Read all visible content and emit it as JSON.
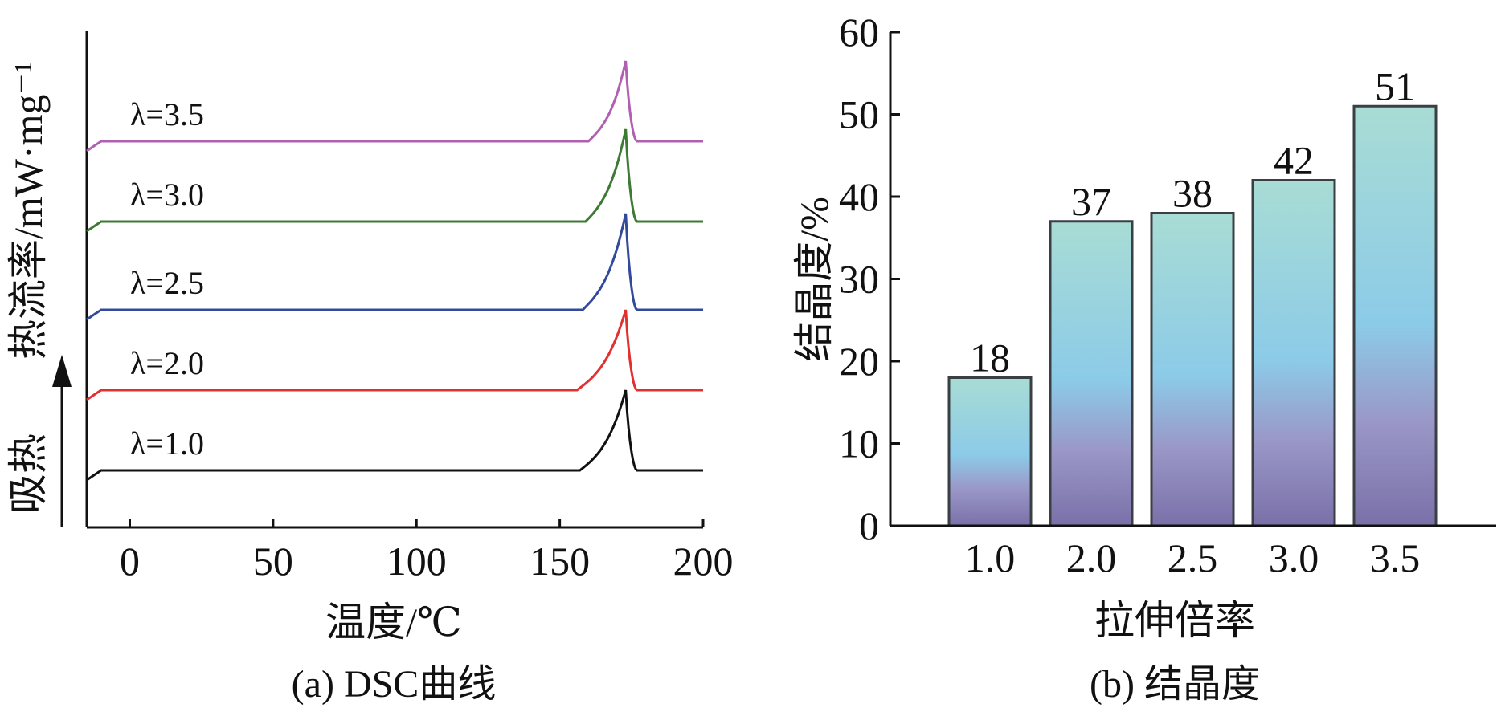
{
  "chart_data": [
    {
      "type": "line",
      "caption": "(a) DSC曲线",
      "xlabel": "温度/℃",
      "ylabel": "热流率/mW·mg⁻¹",
      "endotherm_label": "吸热",
      "xlim": [
        -15,
        200
      ],
      "x_ticks": [
        "0",
        "50",
        "100",
        "150",
        "200"
      ],
      "x_tick_values": [
        0,
        50,
        100,
        150,
        200
      ],
      "peak_temperature": 173,
      "series": [
        {
          "name": "λ=1.0",
          "color": "#111111",
          "baseline": 0.0,
          "peak_height": 1.0,
          "onset": 157
        },
        {
          "name": "λ=2.0",
          "color": "#e03030",
          "baseline": 1.0,
          "peak_height": 1.0,
          "onset": 156
        },
        {
          "name": "λ=2.5",
          "color": "#334a9a",
          "baseline": 2.0,
          "peak_height": 1.2,
          "onset": 158
        },
        {
          "name": "λ=3.0",
          "color": "#3d7a34",
          "baseline": 3.1,
          "peak_height": 1.15,
          "onset": 159
        },
        {
          "name": "λ=3.5",
          "color": "#b060b0",
          "baseline": 4.1,
          "peak_height": 1.0,
          "onset": 160
        }
      ]
    },
    {
      "type": "bar",
      "caption": "(b) 结晶度",
      "xlabel": "拉伸倍率",
      "ylabel": "结晶度/%",
      "ylim": [
        0,
        60
      ],
      "y_ticks": [
        0,
        10,
        20,
        30,
        40,
        50,
        60
      ],
      "categories": [
        "1.0",
        "2.0",
        "2.5",
        "3.0",
        "3.5"
      ],
      "values": [
        18,
        37,
        38,
        42,
        51
      ],
      "bar_gradient": [
        "#a8dcd4",
        "#8ccbe8",
        "#9a98c8",
        "#7a70a8"
      ]
    }
  ]
}
